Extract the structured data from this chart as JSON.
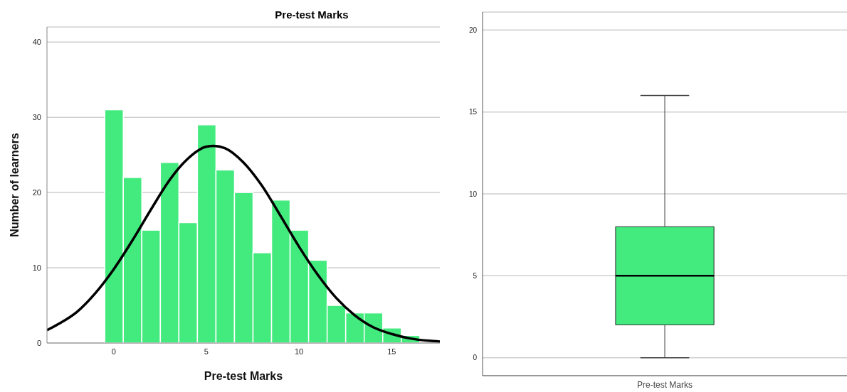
{
  "chart_data": [
    {
      "type": "histogram",
      "title": "Pre-test Marks",
      "xlabel": "Pre-test Marks",
      "ylabel": "Number of learners",
      "color": "#43ea7e",
      "bins": [
        -0.5,
        0.5,
        1.5,
        2.5,
        3.5,
        4.5,
        5.5,
        6.5,
        7.5,
        8.5,
        9.5,
        10.5,
        11.5,
        12.5,
        13.5,
        14.5,
        15.5,
        16.5
      ],
      "values": [
        31,
        22,
        15,
        24,
        16,
        29,
        23,
        20,
        12,
        19,
        15,
        11,
        5,
        4,
        4,
        2,
        1
      ],
      "series": [
        {
          "type": "line",
          "color": "#000000",
          "x": [
            -3.6,
            -3,
            -2,
            -1,
            0,
            1,
            2,
            3,
            4,
            5,
            5.4,
            6,
            7,
            8,
            9,
            10,
            11,
            12,
            13,
            14,
            15,
            16,
            17,
            17.6
          ],
          "values": [
            1.7,
            2.5,
            4.1,
            6.6,
            9.8,
            13.6,
            17.7,
            21.6,
            24.5,
            26.1,
            26.2,
            25.9,
            24.0,
            20.9,
            16.9,
            12.8,
            9.1,
            6.0,
            3.7,
            2.1,
            1.2,
            0.6,
            0.3,
            0.2
          ]
        }
      ],
      "xlim": [
        -3.6,
        17.6
      ],
      "xticks": [
        0,
        5,
        10,
        15
      ],
      "ylim": [
        0,
        42
      ],
      "yticks": [
        0,
        10,
        20,
        30,
        40
      ],
      "grid": "y",
      "marker": "none"
    },
    {
      "type": "box",
      "categories": [
        "Pre-test Marks"
      ],
      "color": "#43ea7e",
      "boxes": [
        {
          "low": 0,
          "q1": 2,
          "median": 5,
          "q3": 8,
          "high": 16
        }
      ],
      "ylim": [
        -1.1,
        21.1
      ],
      "yticks": [
        0,
        5,
        10,
        15,
        20
      ],
      "grid": "y"
    }
  ]
}
